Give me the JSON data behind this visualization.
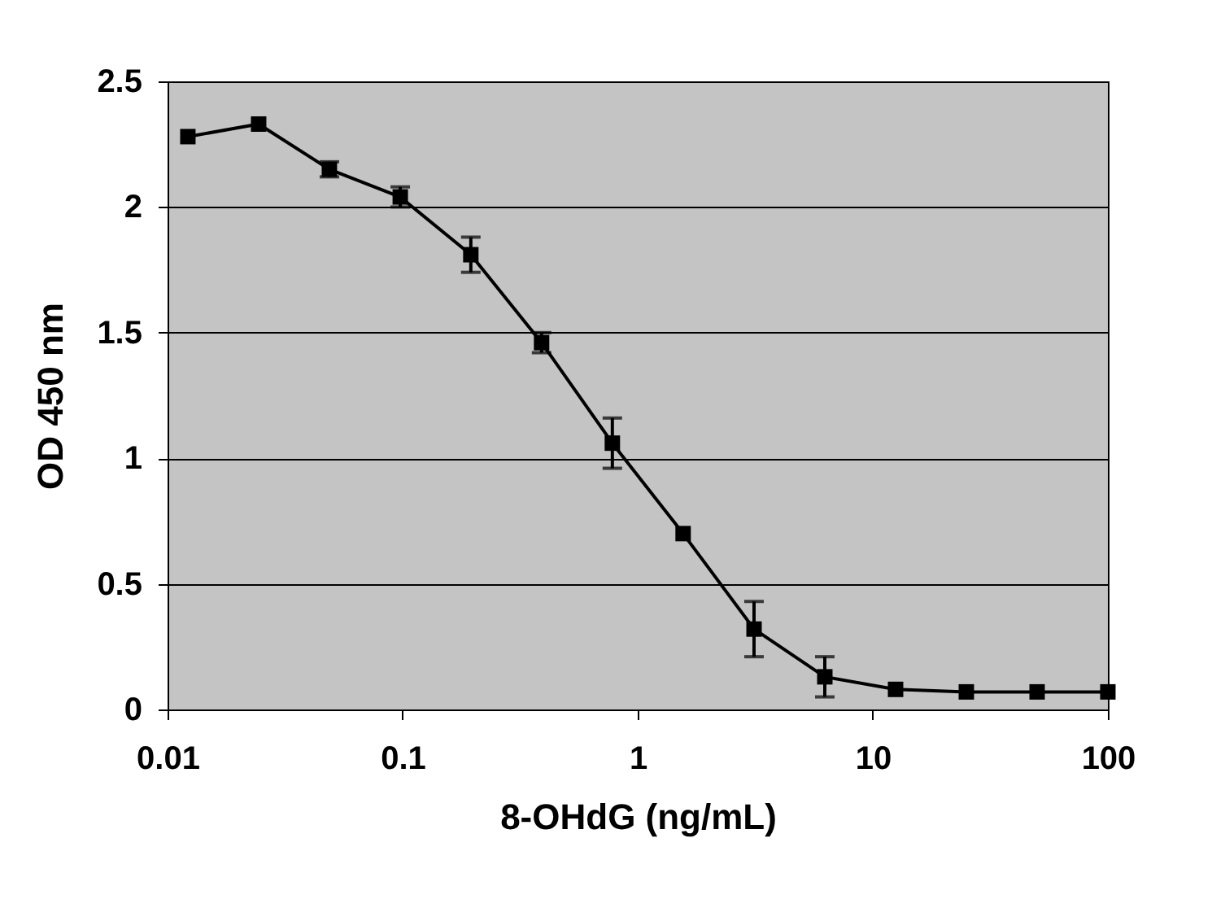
{
  "chart_data": {
    "type": "line",
    "xlabel": "8-OHdG (ng/mL)",
    "ylabel": "OD 450 nm",
    "x": [
      0.0122,
      0.0244,
      0.0488,
      0.0977,
      0.195,
      0.39,
      0.78,
      1.56,
      3.125,
      6.25,
      12.5,
      25,
      50,
      100
    ],
    "series": [
      {
        "color": "#000000",
        "values": [
          2.28,
          2.33,
          2.15,
          2.04,
          1.81,
          1.46,
          1.06,
          0.7,
          0.32,
          0.13,
          0.08,
          0.07,
          0.07,
          0.07
        ],
        "errors": [
          null,
          null,
          0.03,
          0.04,
          0.07,
          0.04,
          0.1,
          null,
          0.11,
          0.08,
          null,
          null,
          null,
          null
        ]
      }
    ],
    "log": "x",
    "xlim": [
      0.01,
      100
    ],
    "xticks": [
      0.01,
      0.1,
      1,
      10,
      100
    ],
    "ylim": [
      0,
      2.5
    ],
    "yticks": [
      0,
      0.5,
      1,
      1.5,
      2,
      2.5
    ],
    "grid": "y",
    "marker": "square",
    "line_style": "solid"
  }
}
